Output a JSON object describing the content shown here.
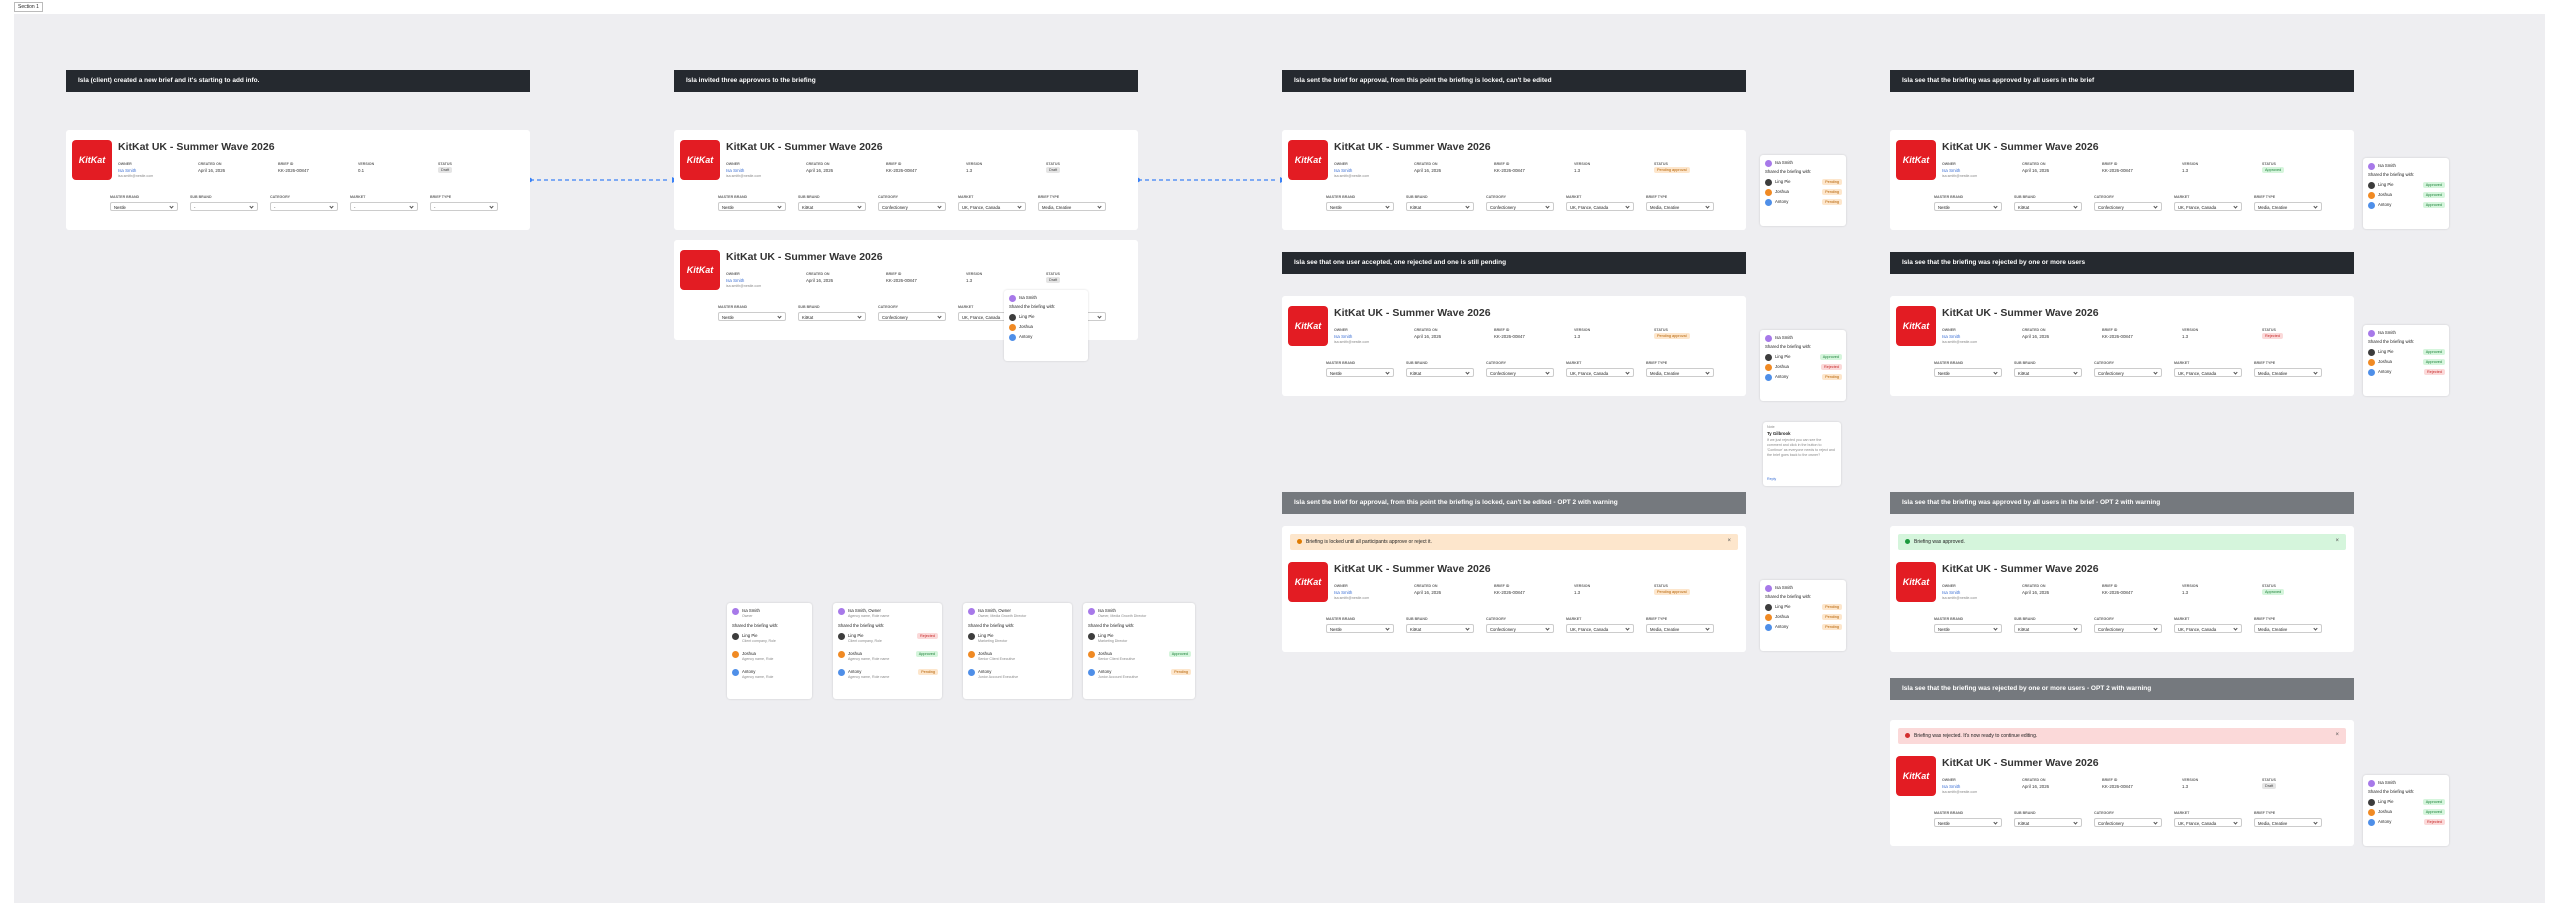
{
  "frame_label": "Section 1",
  "field_labels": [
    "OWNER",
    "CREATED ON",
    "BRIEF ID",
    "VERSION",
    "STATUS"
  ],
  "dropdown_labels": [
    "MASTER BRAND",
    "SUB BRAND",
    "CATEGORY",
    "MARKET",
    "BRIEF TYPE"
  ],
  "headers": [
    {
      "text": "Isla (client) created a new brief and it's starting to add info.",
      "tone": "dark"
    },
    {
      "text": "Isla invited three approvers to the briefing",
      "tone": "dark"
    },
    {
      "text": "Isla sent the brief for approval, from this point the briefing is locked, can't be edited",
      "tone": "dark"
    },
    {
      "text": "Isla see that the briefing was approved by all users in the brief",
      "tone": "dark"
    },
    {
      "text": "Isla see that one user accepted, one rejected and one is still pending",
      "tone": "dark"
    },
    {
      "text": "Isla see that the briefing was rejected by one or more users",
      "tone": "dark"
    },
    {
      "text": "Isla sent the brief for approval, from this point the briefing is locked, can't be edited - OPT 2 with warning",
      "tone": "gray"
    },
    {
      "text": "Isla see that the briefing was approved by all users in the brief - OPT 2 with warning",
      "tone": "gray"
    },
    {
      "text": "Isla see that the briefing was rejected by one or more users - OPT 2 with warning",
      "tone": "gray"
    }
  ],
  "cards": [
    {
      "logo": "KitKat",
      "title": "KitKat UK - Summer Wave 2026",
      "owner": "Isa Smith",
      "email": "isa.smith@nestle.com",
      "created": "April 16, 2026",
      "brief_id": "KK-2026-00847",
      "version": "0.1",
      "status": "Draft",
      "dropdowns": [
        "Nestle",
        "-",
        "-",
        "-",
        "-"
      ]
    },
    {
      "logo": "KitKat",
      "title": "KitKat UK - Summer Wave 2026",
      "owner": "Isa Smith",
      "email": "isa.smith@nestle.com",
      "created": "April 16, 2026",
      "brief_id": "KK-2026-00847",
      "version": "1.3",
      "status": "Draft",
      "dropdowns": [
        "Nestle",
        "KitKat",
        "Confectionery",
        "UK, France, Canada",
        "Media, Creative"
      ]
    },
    {
      "logo": "KitKat",
      "title": "KitKat UK - Summer Wave 2026",
      "owner": "Isa Smith",
      "email": "isa.smith@nestle.com",
      "created": "April 16, 2026",
      "brief_id": "KK-2026-00847",
      "version": "1.3",
      "status": "Draft",
      "dropdowns": [
        "Nestle",
        "KitKat",
        "Confectionery",
        "UK, France, Canada",
        "Media, Creative"
      ]
    },
    {
      "logo": "KitKat",
      "title": "KitKat UK - Summer Wave 2026",
      "owner": "Isa Smith",
      "email": "isa.smith@nestle.com",
      "created": "April 16, 2026",
      "brief_id": "KK-2026-00847",
      "version": "1.3",
      "status": "Pending approval",
      "dropdowns": [
        "Nestle",
        "KitKat",
        "Confectionery",
        "UK, France, Canada",
        "Media, Creative"
      ]
    },
    {
      "logo": "KitKat",
      "title": "KitKat UK - Summer Wave 2026",
      "owner": "Isa Smith",
      "email": "isa.smith@nestle.com",
      "created": "April 16, 2026",
      "brief_id": "KK-2026-00847",
      "version": "1.3",
      "status": "Pending approval",
      "dropdowns": [
        "Nestle",
        "KitKat",
        "Confectionery",
        "UK, France, Canada",
        "Media, Creative"
      ]
    },
    {
      "logo": "KitKat",
      "title": "KitKat UK - Summer Wave 2026",
      "owner": "Isa Smith",
      "email": "isa.smith@nestle.com",
      "created": "April 16, 2026",
      "brief_id": "KK-2026-00847",
      "version": "1.3",
      "status": "Pending approval",
      "dropdowns": [
        "Nestle",
        "KitKat",
        "Confectionery",
        "UK, France, Canada",
        "Media, Creative"
      ],
      "banner": {
        "text": "Briefing is locked until all participants approve or reject it.",
        "tone": "warning"
      }
    },
    {
      "logo": "KitKat",
      "title": "KitKat UK - Summer Wave 2026",
      "owner": "Isa Smith",
      "email": "isa.smith@nestle.com",
      "created": "April 16, 2026",
      "brief_id": "KK-2026-00847",
      "version": "1.3",
      "status": "Approved",
      "dropdowns": [
        "Nestle",
        "KitKat",
        "Confectionery",
        "UK, France, Canada",
        "Media, Creative"
      ]
    },
    {
      "logo": "KitKat",
      "title": "KitKat UK - Summer Wave 2026",
      "owner": "Isa Smith",
      "email": "isa.smith@nestle.com",
      "created": "April 16, 2026",
      "brief_id": "KK-2026-00847",
      "version": "1.3",
      "status": "Rejected",
      "dropdowns": [
        "Nestle",
        "KitKat",
        "Confectionery",
        "UK, France, Canada",
        "Media, Creative"
      ]
    },
    {
      "logo": "KitKat",
      "title": "KitKat UK - Summer Wave 2026",
      "owner": "Isa Smith",
      "email": "isa.smith@nestle.com",
      "created": "April 16, 2026",
      "brief_id": "KK-2026-00847",
      "version": "1.3",
      "status": "Approved",
      "dropdowns": [
        "Nestle",
        "KitKat",
        "Confectionery",
        "UK, France, Canada",
        "Media, Creative"
      ],
      "banner": {
        "text": "Briefing was approved.",
        "tone": "success"
      }
    },
    {
      "logo": "KitKat",
      "title": "KitKat UK - Summer Wave 2026",
      "owner": "Isa Smith",
      "email": "isa.smith@nestle.com",
      "created": "April 16, 2026",
      "brief_id": "KK-2026-00847",
      "version": "1.3",
      "status": "Draft",
      "dropdowns": [
        "Nestle",
        "KitKat",
        "Confectionery",
        "UK, France, Canada",
        "Media, Creative"
      ],
      "banner": {
        "text": "Briefing was rejected. It's now ready to continue editing.",
        "tone": "error"
      }
    }
  ],
  "side_panels": [
    {
      "owner": "Isa Smith",
      "heading": "Shared the briefing with:",
      "users": [
        {
          "name": "Ling Pie"
        },
        {
          "name": "Joshua"
        },
        {
          "name": "Antony"
        }
      ]
    },
    {
      "owner": "Isa Smith",
      "heading": "Shared the briefing with:",
      "users": [
        {
          "name": "Ling Pie",
          "status": "Pending"
        },
        {
          "name": "Joshua",
          "status": "Pending"
        },
        {
          "name": "Antony",
          "status": "Pending"
        }
      ]
    },
    {
      "owner": "Isa Smith",
      "heading": "Shared the briefing with:",
      "users": [
        {
          "name": "Ling Pie",
          "status": "Approved"
        },
        {
          "name": "Joshua",
          "status": "Rejected"
        },
        {
          "name": "Antony",
          "status": "Pending"
        }
      ]
    },
    {
      "owner": "Isa Smith",
      "heading": "Shared the briefing with:",
      "users": [
        {
          "name": "Ling Pie",
          "status": "Pending"
        },
        {
          "name": "Joshua",
          "status": "Pending"
        },
        {
          "name": "Antony",
          "status": "Pending"
        }
      ]
    },
    {
      "owner": "Isa Smith",
      "heading": "Shared the briefing with:",
      "users": [
        {
          "name": "Ling Pie",
          "status": "Approved"
        },
        {
          "name": "Joshua",
          "status": "Approved"
        },
        {
          "name": "Antony",
          "status": "Approved"
        }
      ]
    },
    {
      "owner": "Isa Smith",
      "heading": "Shared the briefing with:",
      "users": [
        {
          "name": "Ling Pie",
          "status": "Approved"
        },
        {
          "name": "Joshua",
          "status": "Approved"
        },
        {
          "name": "Antony",
          "status": "Rejected"
        }
      ]
    },
    {
      "owner": "Isa Smith",
      "heading": "Shared the briefing with:",
      "users": [
        {
          "name": "Ling Pie",
          "status": "Approved"
        },
        {
          "name": "Joshua",
          "status": "Approved"
        },
        {
          "name": "Antony",
          "status": "Rejected"
        }
      ]
    }
  ],
  "comment": {
    "author": "Note",
    "title": "Ty Gilbrook",
    "body": "If we just rejected you can see the comment and click in the button to 'Continue' as everyone needs to reject and the brief goes back to the owner?",
    "action": "Reply"
  },
  "share_panels": [
    {
      "owner": "Isa Smith",
      "role": "Owner",
      "heading": "Shared the briefing with:",
      "users": [
        {
          "name": "Ling Pie",
          "subtitle": "Client company, Role"
        },
        {
          "name": "Joshua",
          "subtitle": "Agency name, Role"
        },
        {
          "name": "Antony",
          "subtitle": "Agency name, Role"
        }
      ]
    },
    {
      "owner": "Isa Smith, Owner",
      "role": "Agency name, Role name",
      "heading": "Shared the briefing with:",
      "users": [
        {
          "name": "Ling Pie",
          "subtitle": "Client company, Role",
          "status": "Rejected"
        },
        {
          "name": "Joshua",
          "subtitle": "Agency name, Role name",
          "status": "Approved"
        },
        {
          "name": "Antony",
          "subtitle": "Agency name, Role name",
          "status": "Pending"
        }
      ]
    },
    {
      "owner": "Isa Smith, Owner",
      "role": "Owner, Media Growth Director",
      "heading": "Shared the briefing with:",
      "users": [
        {
          "name": "Ling Pie",
          "subtitle": "Marketing Director"
        },
        {
          "name": "Joshua",
          "subtitle": "Senior Client Executive"
        },
        {
          "name": "Antony",
          "subtitle": "Junior Account Executive"
        }
      ]
    },
    {
      "owner": "Isa Smith",
      "role": "Owner, Media Growth Director",
      "heading": "Shared the briefing with:",
      "users": [
        {
          "name": "Ling Pie",
          "subtitle": "Marketing Director"
        },
        {
          "name": "Joshua",
          "subtitle": "Senior Client Executive",
          "status": "Approved"
        },
        {
          "name": "Antony",
          "subtitle": "Junior Account Executive",
          "status": "Pending"
        }
      ]
    }
  ]
}
